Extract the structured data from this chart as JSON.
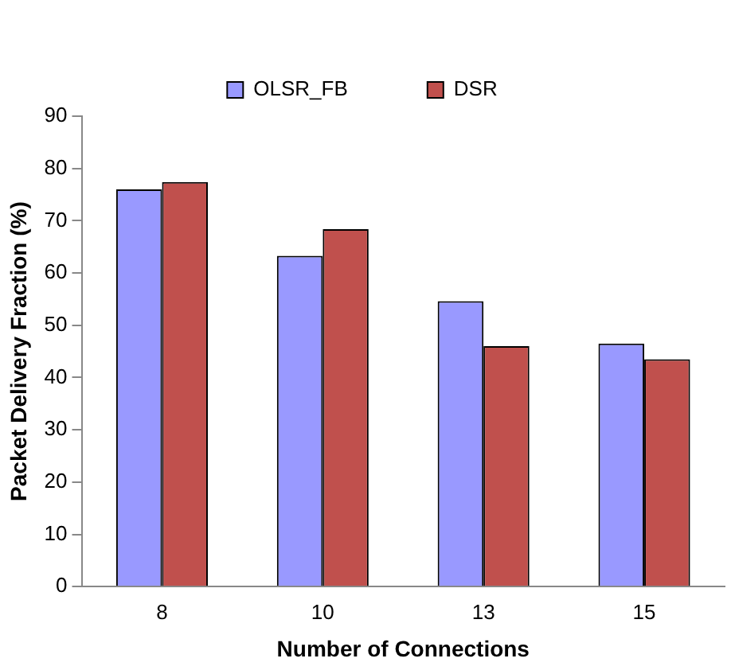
{
  "chart_data": {
    "type": "bar",
    "xlabel": "Number of Connections",
    "ylabel": "Packet Delivery Fraction (%)",
    "categories": [
      "8",
      "10",
      "13",
      "15"
    ],
    "series": [
      {
        "name": "OLSR_FB",
        "color": "#9999ff",
        "values": [
          76,
          63.3,
          54.6,
          46.5
        ]
      },
      {
        "name": "DSR",
        "color": "#c0504d",
        "values": [
          77.4,
          68.4,
          46,
          43.5
        ]
      }
    ],
    "ylim": [
      0,
      90
    ],
    "yticks": [
      0,
      10,
      20,
      30,
      40,
      50,
      60,
      70,
      80,
      90
    ],
    "grid": false,
    "legend": "top"
  }
}
